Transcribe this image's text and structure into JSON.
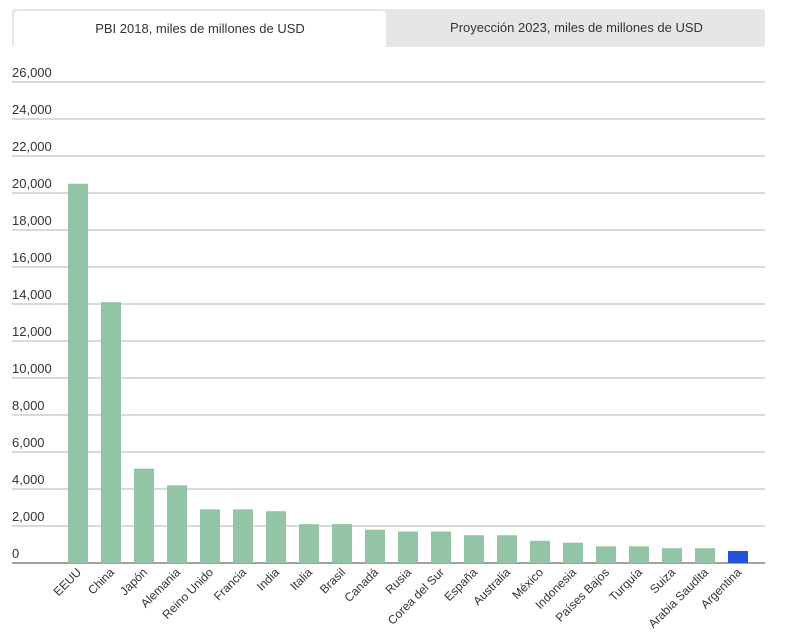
{
  "tabs": [
    {
      "label": "PBI 2018, miles de millones de USD",
      "active": true
    },
    {
      "label": "Proyección 2023, miles de millones de USD",
      "active": false
    }
  ],
  "colors": {
    "bar": "#93c4a5",
    "highlight": "#2553d6",
    "grid": "#b5b5b5",
    "text": "#333333"
  },
  "chart_data": {
    "type": "bar",
    "title": "",
    "xlabel": "",
    "ylabel": "",
    "ylim": [
      0,
      26000
    ],
    "yticks": [
      "0",
      "2,000",
      "4,000",
      "6,000",
      "8,000",
      "10,000",
      "12,000",
      "14,000",
      "16,000",
      "18,000",
      "20,000",
      "22,000",
      "24,000",
      "26,000"
    ],
    "grid": true,
    "highlight": "Argentina",
    "categories": [
      "EEUU",
      "China",
      "Japón",
      "Alemania",
      "Reino Unido",
      "Francia",
      "India",
      "Italia",
      "Brasil",
      "Canadá",
      "Rusia",
      "Corea del Sur",
      "España",
      "Australia",
      "México",
      "Indonesia",
      "Países Bajos",
      "Turquía",
      "Suiza",
      "Arabia Saudita",
      "Argentina"
    ],
    "values": [
      20500,
      14100,
      5100,
      4200,
      2900,
      2900,
      2800,
      2100,
      2100,
      1800,
      1700,
      1700,
      1500,
      1500,
      1200,
      1100,
      900,
      900,
      800,
      800,
      650
    ]
  }
}
